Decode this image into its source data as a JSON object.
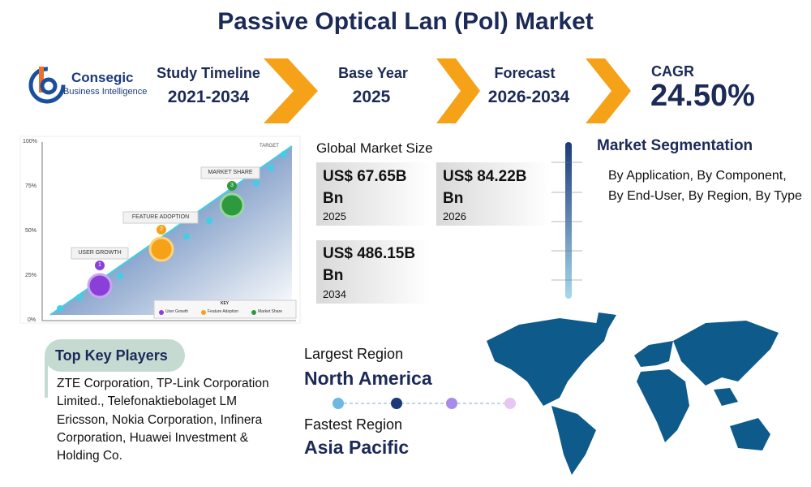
{
  "header": {
    "title": "Passive Optical Lan (Pol) Market",
    "logo": {
      "name": "Consegic",
      "tagline": "Business Intelligence"
    },
    "stats": [
      {
        "label": "Study Timeline",
        "value": "2021-2034"
      },
      {
        "label": "Base Year",
        "value": "2025"
      },
      {
        "label": "Forecast",
        "value": "2026-2034"
      },
      {
        "label": "CAGR",
        "value": "24.50%"
      }
    ]
  },
  "illustration": {
    "axis_labels": [
      "100%",
      "75%",
      "50%",
      "25%",
      "0%"
    ],
    "target": "TARGET",
    "milestones": [
      {
        "number": "1",
        "label": "USER GROWTH"
      },
      {
        "number": "2",
        "label": "FEATURE ADOPTION"
      },
      {
        "number": "3",
        "label": "MARKET SHARE"
      }
    ],
    "key": {
      "title": "KEY",
      "items": [
        "User Growth",
        "Feature Adoption",
        "Market Share"
      ]
    }
  },
  "market_size": {
    "title": "Global Market Size",
    "items": [
      {
        "value": "US$ 67.65B Bn",
        "year": "2025"
      },
      {
        "value": "US$ 84.22B Bn",
        "year": "2026"
      },
      {
        "value": "US$ 486.15B Bn",
        "year": "2034"
      }
    ]
  },
  "segmentation": {
    "title": "Market Segmentation",
    "text": "By Application, By Component, By End-User, By Region, By Type"
  },
  "key_players": {
    "title": "Top Key Players",
    "text": "ZTE Corporation, TP-Link Corporation Limited., Telefonaktiebolaget LM Ericsson, Nokia Corporation, Infinera Corporation, Huawei Investment & Holding Co."
  },
  "regions": {
    "largest_label": "Largest Region",
    "largest": "North America",
    "fastest_label": "Fastest Region",
    "fastest": "Asia Pacific"
  }
}
